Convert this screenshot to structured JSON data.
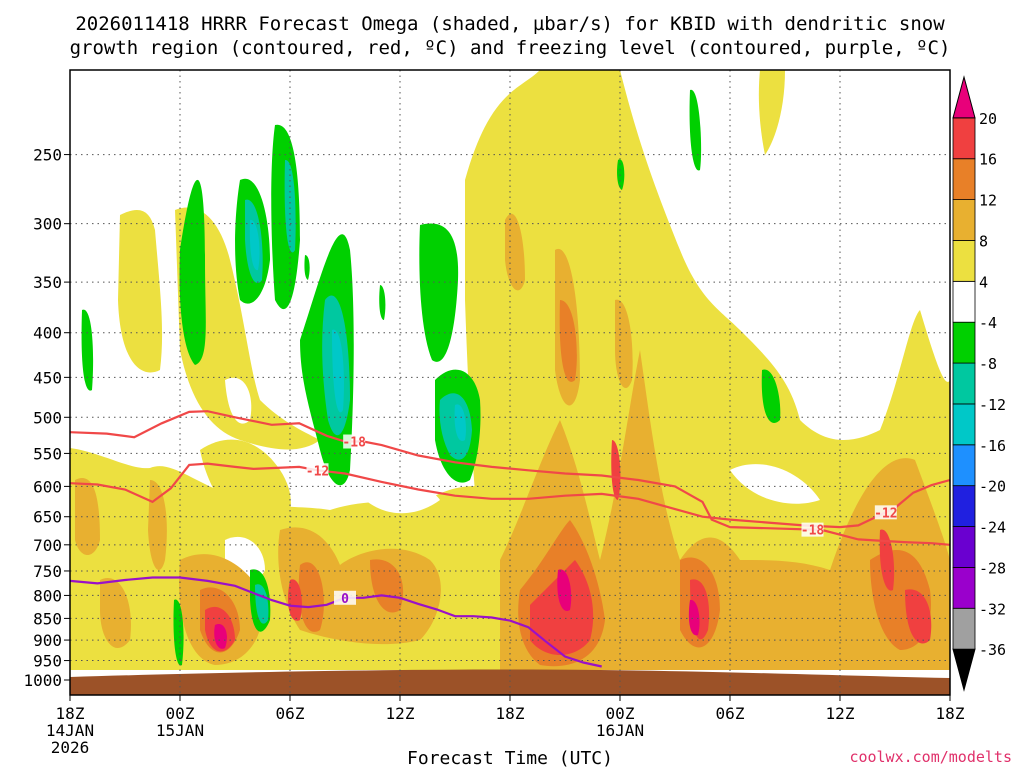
{
  "chart_data": {
    "type": "heatmap",
    "title_lines": [
      "2026011418 HRRR Forecast Omega (shaded, µbar/s) for KBID with dendritic snow",
      "growth region (contoured, red, ºC) and freezing level (contoured, purple, ºC)"
    ],
    "xlabel": "Forecast Time (UTC)",
    "ylabel": "",
    "credit": "coolwx.com/modelts",
    "x_range_hours": [
      0,
      48
    ],
    "y_range_hPa": [
      1000,
      200
    ],
    "y_ticks": [
      {
        "v": 250,
        "label": "250"
      },
      {
        "v": 300,
        "label": "300"
      },
      {
        "v": 350,
        "label": "350"
      },
      {
        "v": 400,
        "label": "400"
      },
      {
        "v": 450,
        "label": "450"
      },
      {
        "v": 500,
        "label": "500"
      },
      {
        "v": 550,
        "label": "550"
      },
      {
        "v": 600,
        "label": "600"
      },
      {
        "v": 650,
        "label": "650"
      },
      {
        "v": 700,
        "label": "700"
      },
      {
        "v": 750,
        "label": "750"
      },
      {
        "v": 800,
        "label": "800"
      },
      {
        "v": 850,
        "label": "850"
      },
      {
        "v": 900,
        "label": "900"
      },
      {
        "v": 950,
        "label": "950"
      },
      {
        "v": 1000,
        "label": "1000"
      }
    ],
    "x_ticks": [
      {
        "h": 0,
        "lines": [
          "18Z",
          "14JAN",
          "2026"
        ]
      },
      {
        "h": 6,
        "lines": [
          "00Z",
          "15JAN"
        ]
      },
      {
        "h": 12,
        "lines": [
          "06Z"
        ]
      },
      {
        "h": 18,
        "lines": [
          "12Z"
        ]
      },
      {
        "h": 24,
        "lines": [
          "18Z"
        ]
      },
      {
        "h": 30,
        "lines": [
          "00Z",
          "16JAN"
        ]
      },
      {
        "h": 36,
        "lines": [
          "06Z"
        ]
      },
      {
        "h": 42,
        "lines": [
          "12Z"
        ]
      },
      {
        "h": 48,
        "lines": [
          "18Z"
        ]
      }
    ],
    "colorbar": {
      "colors": [
        "#000000",
        "#a0a0a0",
        "#9a00cc",
        "#6a00d0",
        "#2020e0",
        "#1e90ff",
        "#00c8c8",
        "#00c8a0",
        "#00d000",
        "#ffffff",
        "#ece040",
        "#e8b030",
        "#e88028",
        "#f04040",
        "#e8007a"
      ],
      "labels": [
        "-36",
        "-32",
        "-28",
        "-24",
        "-20",
        "-16",
        "-12",
        "-8",
        "-4",
        "4",
        "8",
        "12",
        "16",
        "20"
      ]
    },
    "contours": {
      "dgz_minus12": {
        "label": "-12",
        "color": "#f04848",
        "points": [
          [
            0,
            595
          ],
          [
            1.5,
            597
          ],
          [
            3,
            605
          ],
          [
            4.5,
            625
          ],
          [
            5.5,
            603
          ],
          [
            6.5,
            567
          ],
          [
            7.5,
            565
          ],
          [
            9,
            570
          ],
          [
            10,
            573
          ],
          [
            12.5,
            570
          ],
          [
            13.5,
            575
          ],
          [
            15,
            580
          ],
          [
            17,
            593
          ],
          [
            19,
            605
          ],
          [
            21,
            615
          ],
          [
            23,
            620
          ],
          [
            25,
            620
          ],
          [
            27,
            615
          ],
          [
            29,
            612
          ],
          [
            31,
            620
          ],
          [
            33,
            637
          ],
          [
            34.5,
            650
          ],
          [
            36,
            655
          ],
          [
            38,
            660
          ],
          [
            40,
            665
          ],
          [
            42,
            668
          ],
          [
            43,
            665
          ],
          [
            45,
            635
          ],
          [
            46,
            610
          ],
          [
            47,
            598
          ],
          [
            48,
            590
          ]
        ]
      },
      "dgz_minus18": {
        "label": "-18",
        "color": "#f04848",
        "points": [
          [
            0,
            520
          ],
          [
            2,
            522
          ],
          [
            3.5,
            527
          ],
          [
            5,
            508
          ],
          [
            6.5,
            493
          ],
          [
            7.5,
            492
          ],
          [
            9,
            500
          ],
          [
            11,
            510
          ],
          [
            12.5,
            508
          ],
          [
            14,
            525
          ],
          [
            15,
            533
          ],
          [
            16,
            533
          ],
          [
            17,
            538
          ],
          [
            19,
            553
          ],
          [
            21,
            563
          ],
          [
            23,
            570
          ],
          [
            25,
            575
          ],
          [
            27,
            580
          ],
          [
            29,
            583
          ],
          [
            31,
            590
          ],
          [
            33,
            600
          ],
          [
            34.5,
            625
          ],
          [
            35,
            655
          ],
          [
            36,
            668
          ],
          [
            38,
            670
          ],
          [
            41,
            673
          ],
          [
            43,
            690
          ],
          [
            44,
            692
          ],
          [
            45.5,
            695
          ],
          [
            47,
            697
          ],
          [
            48,
            700
          ]
        ]
      },
      "freezing_level": {
        "label": "0",
        "color": "#9a10c8",
        "points": [
          [
            0,
            770
          ],
          [
            1.5,
            775
          ],
          [
            3,
            768
          ],
          [
            4.5,
            763
          ],
          [
            6,
            763
          ],
          [
            7.5,
            770
          ],
          [
            9,
            780
          ],
          [
            10,
            795
          ],
          [
            11,
            810
          ],
          [
            12,
            822
          ],
          [
            13,
            825
          ],
          [
            14,
            820
          ],
          [
            15,
            805
          ],
          [
            16,
            805
          ],
          [
            17,
            800
          ],
          [
            18,
            805
          ],
          [
            19,
            818
          ],
          [
            20,
            830
          ],
          [
            21,
            845
          ],
          [
            22,
            845
          ],
          [
            23,
            848
          ],
          [
            24,
            855
          ],
          [
            25,
            870
          ],
          [
            26,
            905
          ],
          [
            27,
            940
          ],
          [
            28,
            955
          ],
          [
            29,
            965
          ]
        ]
      }
    }
  }
}
